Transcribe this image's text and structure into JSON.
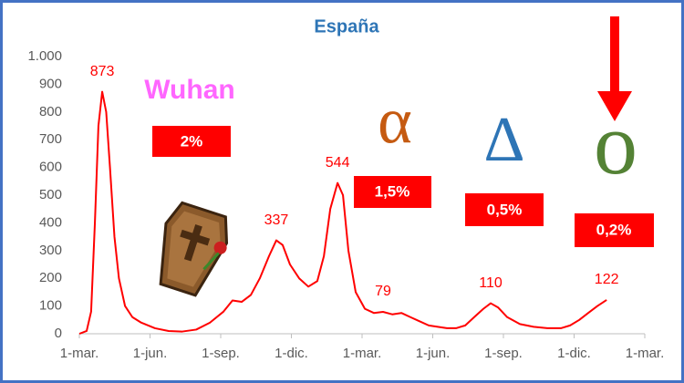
{
  "chart_data": {
    "type": "line",
    "title": "España",
    "x": [
      0,
      0.31,
      0.5,
      0.66,
      0.81,
      0.97,
      1.14,
      1.3,
      1.49,
      1.68,
      1.94,
      2.25,
      2.63,
      3.21,
      3.79,
      4.37,
      4.96,
      5.54,
      6.12,
      6.5,
      6.89,
      7.28,
      7.66,
      8.05,
      8.36,
      8.63,
      8.94,
      9.33,
      9.72,
      10.1,
      10.38,
      10.65,
      10.96,
      11.19,
      11.42,
      11.73,
      12.12,
      12.5,
      12.89,
      13.28,
      13.67,
      14.05,
      14.44,
      14.83,
      15.21,
      15.6,
      15.99,
      16.38,
      16.76,
      17.15,
      17.46,
      17.77,
      18.16,
      18.7,
      19.28,
      19.86,
      20.44,
      20.83,
      21.22,
      21.6,
      21.99,
      22.38
    ],
    "series": [
      {
        "color": "#ff0000",
        "values": [
          0,
          10,
          80,
          400,
          750,
          873,
          800,
          600,
          350,
          200,
          100,
          60,
          40,
          20,
          10,
          8,
          15,
          40,
          80,
          120,
          115,
          140,
          200,
          280,
          337,
          320,
          250,
          200,
          170,
          190,
          280,
          450,
          544,
          500,
          300,
          150,
          90,
          75,
          79,
          70,
          75,
          60,
          45,
          30,
          25,
          20,
          20,
          30,
          60,
          90,
          110,
          95,
          60,
          35,
          25,
          20,
          20,
          30,
          50,
          75,
          100,
          122
        ],
        "value_labels": [
          null,
          null,
          null,
          null,
          null,
          "873",
          null,
          null,
          null,
          null,
          null,
          null,
          null,
          null,
          null,
          null,
          null,
          null,
          null,
          null,
          null,
          null,
          null,
          null,
          "337",
          null,
          null,
          null,
          null,
          null,
          null,
          null,
          "544",
          null,
          null,
          null,
          null,
          null,
          "79",
          null,
          null,
          null,
          null,
          null,
          null,
          null,
          null,
          null,
          null,
          null,
          "110",
          null,
          null,
          null,
          null,
          null,
          null,
          null,
          null,
          null,
          null,
          "122"
        ]
      }
    ],
    "xlim": [
      0,
      24
    ],
    "xticks": [
      {
        "value": 0,
        "label": "1-mar."
      },
      {
        "value": 3,
        "label": "1-jun."
      },
      {
        "value": 6,
        "label": "1-sep."
      },
      {
        "value": 9,
        "label": "1-dic."
      },
      {
        "value": 12,
        "label": "1-mar."
      },
      {
        "value": 15,
        "label": "1-jun."
      },
      {
        "value": 18,
        "label": "1-sep."
      },
      {
        "value": 21,
        "label": "1-dic."
      },
      {
        "value": 24,
        "label": "1-mar."
      }
    ],
    "ylim": [
      0,
      1000
    ],
    "yticks": [
      0,
      100,
      200,
      300,
      400,
      500,
      600,
      700,
      800,
      900,
      {
        "value": 1000,
        "label": "1.000"
      }
    ],
    "annotations": [
      "Wuhan",
      "2%",
      "α",
      "1,5%",
      "Δ",
      "0,5%",
      "ο",
      "0,2%"
    ]
  }
}
